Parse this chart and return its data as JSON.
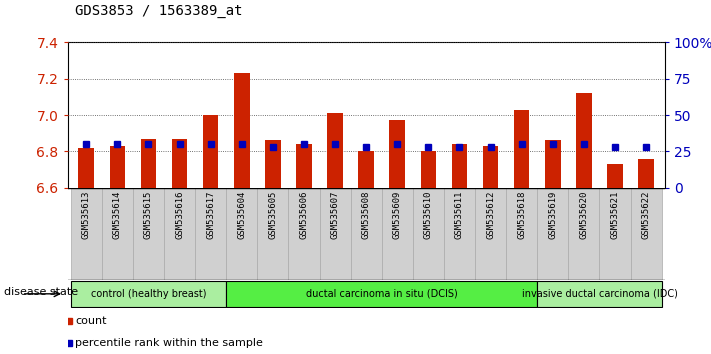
{
  "title": "GDS3853 / 1563389_at",
  "samples": [
    "GSM535613",
    "GSM535614",
    "GSM535615",
    "GSM535616",
    "GSM535617",
    "GSM535604",
    "GSM535605",
    "GSM535606",
    "GSM535607",
    "GSM535608",
    "GSM535609",
    "GSM535610",
    "GSM535611",
    "GSM535612",
    "GSM535618",
    "GSM535619",
    "GSM535620",
    "GSM535621",
    "GSM535622"
  ],
  "bar_values": [
    6.82,
    6.83,
    6.87,
    6.87,
    7.0,
    7.23,
    6.86,
    6.84,
    7.01,
    6.8,
    6.97,
    6.8,
    6.84,
    6.83,
    7.03,
    6.86,
    7.12,
    6.73,
    6.76
  ],
  "pct_raw": [
    30,
    30,
    30,
    30,
    30,
    30,
    28,
    30,
    30,
    28,
    30,
    28,
    28,
    28,
    30,
    30,
    30,
    28,
    28
  ],
  "ylim_left": [
    6.6,
    7.4
  ],
  "ylim_right": [
    0,
    100
  ],
  "yticks_left": [
    6.6,
    6.8,
    7.0,
    7.2,
    7.4
  ],
  "yticks_right": [
    0,
    25,
    50,
    75,
    100
  ],
  "ytick_labels_right": [
    "0",
    "25",
    "50",
    "75",
    "100%"
  ],
  "bar_color": "#cc2200",
  "percentile_color": "#0000bb",
  "bar_bottom": 6.6,
  "groups": [
    {
      "label": "control (healthy breast)",
      "start": 0,
      "end": 5,
      "color": "#aaeea0"
    },
    {
      "label": "ductal carcinoma in situ (DCIS)",
      "start": 5,
      "end": 15,
      "color": "#55ee44"
    },
    {
      "label": "invasive ductal carcinoma (IDC)",
      "start": 15,
      "end": 19,
      "color": "#aaeea0"
    }
  ],
  "disease_state_label": "disease state",
  "legend_count_label": "count",
  "legend_percentile_label": "percentile rank within the sample",
  "tick_color_left": "#cc2200",
  "tick_color_right": "#0000bb",
  "xtick_bg_color": "#d0d0d0",
  "plot_bg_color": "#ffffff",
  "grid_linestyle": "dotted",
  "grid_color": "#555555"
}
